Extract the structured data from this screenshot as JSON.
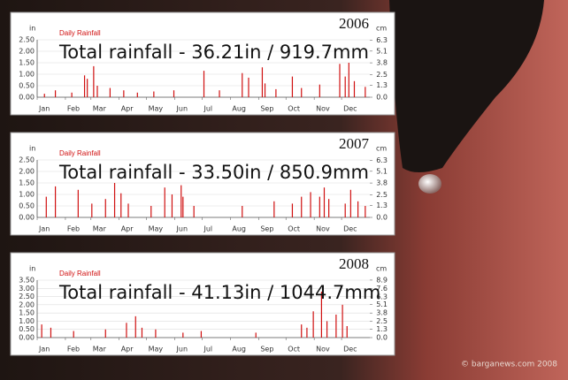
{
  "chart_data": [
    {
      "type": "bar",
      "title": "2006",
      "subtitle": "Daily Rainfall",
      "annotation": "Total rainfall -  36.21in / 919.7mm",
      "ylabel": "in",
      "y2label": "cm",
      "color": "#d01010",
      "grid": true,
      "xlim": [
        0,
        365
      ],
      "xticks": [
        {
          "value": 0,
          "label": "Jan"
        },
        {
          "value": 31,
          "label": "Feb"
        },
        {
          "value": 59,
          "label": "Mar"
        },
        {
          "value": 90,
          "label": "Apr"
        },
        {
          "value": 120,
          "label": "May"
        },
        {
          "value": 151,
          "label": "Jun"
        },
        {
          "value": 181,
          "label": "Jul"
        },
        {
          "value": 212,
          "label": "Aug"
        },
        {
          "value": 243,
          "label": "Sep"
        },
        {
          "value": 273,
          "label": "Oct"
        },
        {
          "value": 304,
          "label": "Nov"
        },
        {
          "value": 334,
          "label": "Dec"
        }
      ],
      "ylim": [
        0,
        2.5
      ],
      "yticks": [
        {
          "value": 0,
          "label": "0.00"
        },
        {
          "value": 0.5,
          "label": "0.50"
        },
        {
          "value": 1,
          "label": "1.00"
        },
        {
          "value": 1.5,
          "label": "1.50"
        },
        {
          "value": 2,
          "label": "2.00"
        },
        {
          "value": 2.5,
          "label": "2.50"
        }
      ],
      "y2lim": [
        0,
        6.35
      ],
      "y2ticks": [
        {
          "value": 0,
          "label": "0.0"
        },
        1.3,
        2.5,
        3.8,
        5.1,
        6.3
      ],
      "x": [
        8,
        20,
        38,
        52,
        55,
        62,
        66,
        80,
        95,
        110,
        128,
        150,
        183,
        200,
        225,
        232,
        247,
        250,
        262,
        280,
        290,
        310,
        332,
        338,
        342,
        348,
        360
      ],
      "values": [
        0.15,
        0.3,
        0.2,
        0.95,
        0.8,
        1.35,
        0.5,
        0.4,
        0.3,
        0.2,
        0.25,
        0.3,
        1.15,
        0.3,
        1.05,
        0.85,
        1.3,
        0.6,
        0.35,
        0.9,
        0.4,
        0.55,
        1.45,
        0.9,
        1.5,
        0.7,
        0.45
      ]
    },
    {
      "type": "bar",
      "title": "2007",
      "subtitle": "Daily Rainfall",
      "annotation": "Total rainfall -  33.50in / 850.9mm",
      "ylabel": "in",
      "y2label": "cm",
      "color": "#d01010",
      "grid": true,
      "xlim": [
        0,
        365
      ],
      "xticks": [
        {
          "value": 0,
          "label": "Jan"
        },
        {
          "value": 31,
          "label": "Feb"
        },
        {
          "value": 59,
          "label": "Mar"
        },
        {
          "value": 90,
          "label": "Apr"
        },
        {
          "value": 120,
          "label": "May"
        },
        {
          "value": 151,
          "label": "Jun"
        },
        {
          "value": 181,
          "label": "Jul"
        },
        {
          "value": 212,
          "label": "Aug"
        },
        {
          "value": 243,
          "label": "Sep"
        },
        {
          "value": 273,
          "label": "Oct"
        },
        {
          "value": 304,
          "label": "Nov"
        },
        {
          "value": 334,
          "label": "Dec"
        }
      ],
      "ylim": [
        0,
        2.5
      ],
      "yticks": [
        {
          "value": 0,
          "label": "0.00"
        },
        {
          "value": 0.5,
          "label": "0.50"
        },
        {
          "value": 1,
          "label": "1.00"
        },
        {
          "value": 1.5,
          "label": "1.50"
        },
        {
          "value": 2,
          "label": "2.00"
        },
        {
          "value": 2.5,
          "label": "2.50"
        }
      ],
      "y2lim": [
        0,
        6.35
      ],
      "y2ticks": [
        {
          "value": 0,
          "label": "0.0"
        },
        1.3,
        2.5,
        3.8,
        5.1,
        6.3
      ],
      "x": [
        10,
        20,
        45,
        60,
        75,
        85,
        92,
        100,
        125,
        140,
        148,
        158,
        160,
        172,
        225,
        260,
        280,
        290,
        300,
        310,
        315,
        320,
        338,
        344,
        352,
        360
      ],
      "values": [
        0.9,
        1.35,
        1.2,
        0.6,
        0.8,
        1.5,
        1.05,
        0.6,
        0.5,
        1.3,
        1.0,
        1.4,
        0.9,
        0.5,
        0.5,
        0.7,
        0.6,
        0.9,
        1.1,
        0.9,
        1.3,
        0.8,
        0.6,
        1.2,
        0.7,
        0.5
      ]
    },
    {
      "type": "bar",
      "title": "2008",
      "subtitle": "Daily Rainfall",
      "annotation": "Total rainfall -  41.13in / 1044.7mm",
      "ylabel": "in",
      "y2label": "cm",
      "color": "#d01010",
      "grid": true,
      "xlim": [
        0,
        365
      ],
      "xticks": [
        {
          "value": 0,
          "label": "Jan"
        },
        {
          "value": 31,
          "label": "Feb"
        },
        {
          "value": 59,
          "label": "Mar"
        },
        {
          "value": 90,
          "label": "Apr"
        },
        {
          "value": 120,
          "label": "May"
        },
        {
          "value": 151,
          "label": "Jun"
        },
        {
          "value": 181,
          "label": "Jul"
        },
        {
          "value": 212,
          "label": "Aug"
        },
        {
          "value": 243,
          "label": "Sep"
        },
        {
          "value": 273,
          "label": "Oct"
        },
        {
          "value": 304,
          "label": "Nov"
        },
        {
          "value": 334,
          "label": "Dec"
        }
      ],
      "ylim": [
        0,
        3.5
      ],
      "yticks": [
        {
          "value": 0,
          "label": "0.00"
        },
        {
          "value": 0.5,
          "label": "0.50"
        },
        {
          "value": 1,
          "label": "1.00"
        },
        {
          "value": 1.5,
          "label": "1.50"
        },
        {
          "value": 2,
          "label": "2.00"
        },
        {
          "value": 2.5,
          "label": "2.50"
        },
        {
          "value": 3,
          "label": "3.00"
        },
        {
          "value": 3.5,
          "label": "3.50"
        }
      ],
      "y2lim": [
        0,
        8.89
      ],
      "y2ticks": [
        {
          "value": 0,
          "label": "0.0"
        },
        1.3,
        2.5,
        3.8,
        5.1,
        6.3,
        7.6,
        8.9
      ],
      "x": [
        5,
        15,
        40,
        75,
        98,
        108,
        115,
        130,
        160,
        180,
        240,
        290,
        296,
        303,
        312,
        318,
        328,
        335,
        340
      ],
      "values": [
        0.8,
        0.6,
        0.4,
        0.5,
        0.9,
        1.3,
        0.6,
        0.5,
        0.3,
        0.4,
        0.3,
        0.8,
        0.6,
        1.6,
        2.8,
        1.0,
        1.4,
        2.0,
        0.7
      ]
    }
  ],
  "credit": "© barganews.com 2008"
}
